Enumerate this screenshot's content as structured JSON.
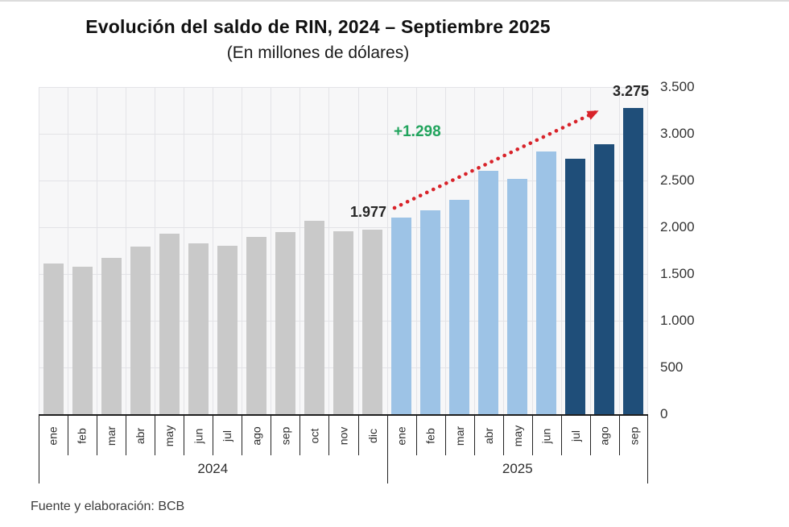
{
  "page": {
    "top_border_color": "#dcdcdc"
  },
  "chart_data": {
    "type": "bar",
    "title": "Evolución del saldo de RIN, 2024 – Septiembre 2025",
    "subtitle": "(En millones de dólares)",
    "source": "Fuente y elaboración: BCB",
    "ylim": [
      0,
      3500
    ],
    "ytick_interval": 500,
    "ytick_labels_top_to_bottom": [
      "3.500",
      "3.000",
      "2.500",
      "2.000",
      "1.500",
      "1.000",
      "500",
      "0"
    ],
    "grid": true,
    "legend": "none",
    "year_groups": [
      {
        "label": "2024",
        "months": 12
      },
      {
        "label": "2025",
        "months": 9
      }
    ],
    "palette": {
      "gray_2024": "#C9C9C9",
      "light_blue_2025": "#9DC3E6",
      "dark_blue_2025": "#1F4E79"
    },
    "bars": [
      {
        "year": "2024",
        "month": "ene",
        "value": 1610,
        "color_key": "gray_2024"
      },
      {
        "year": "2024",
        "month": "feb",
        "value": 1580,
        "color_key": "gray_2024"
      },
      {
        "year": "2024",
        "month": "mar",
        "value": 1670,
        "color_key": "gray_2024"
      },
      {
        "year": "2024",
        "month": "abr",
        "value": 1790,
        "color_key": "gray_2024"
      },
      {
        "year": "2024",
        "month": "may",
        "value": 1935,
        "color_key": "gray_2024"
      },
      {
        "year": "2024",
        "month": "jun",
        "value": 1830,
        "color_key": "gray_2024"
      },
      {
        "year": "2024",
        "month": "jul",
        "value": 1805,
        "color_key": "gray_2024"
      },
      {
        "year": "2024",
        "month": "ago",
        "value": 1900,
        "color_key": "gray_2024"
      },
      {
        "year": "2024",
        "month": "sep",
        "value": 1950,
        "color_key": "gray_2024"
      },
      {
        "year": "2024",
        "month": "oct",
        "value": 2070,
        "color_key": "gray_2024"
      },
      {
        "year": "2024",
        "month": "nov",
        "value": 1955,
        "color_key": "gray_2024"
      },
      {
        "year": "2024",
        "month": "dic",
        "value": 1977,
        "color_key": "gray_2024"
      },
      {
        "year": "2025",
        "month": "ene",
        "value": 2105,
        "color_key": "light_blue_2025"
      },
      {
        "year": "2025",
        "month": "feb",
        "value": 2180,
        "color_key": "light_blue_2025"
      },
      {
        "year": "2025",
        "month": "mar",
        "value": 2290,
        "color_key": "light_blue_2025"
      },
      {
        "year": "2025",
        "month": "abr",
        "value": 2600,
        "color_key": "light_blue_2025"
      },
      {
        "year": "2025",
        "month": "may",
        "value": 2515,
        "color_key": "light_blue_2025"
      },
      {
        "year": "2025",
        "month": "jun",
        "value": 2810,
        "color_key": "light_blue_2025"
      },
      {
        "year": "2025",
        "month": "jul",
        "value": 2730,
        "color_key": "dark_blue_2025"
      },
      {
        "year": "2025",
        "month": "ago",
        "value": 2890,
        "color_key": "dark_blue_2025"
      },
      {
        "year": "2025",
        "month": "sep",
        "value": 3275,
        "color_key": "dark_blue_2025"
      }
    ],
    "annotations": {
      "start_value_label": "1.977",
      "end_value_label": "3.275",
      "delta_label": "+1.298",
      "delta_color": "#21A45D",
      "arrow_color": "#D8232A"
    }
  }
}
